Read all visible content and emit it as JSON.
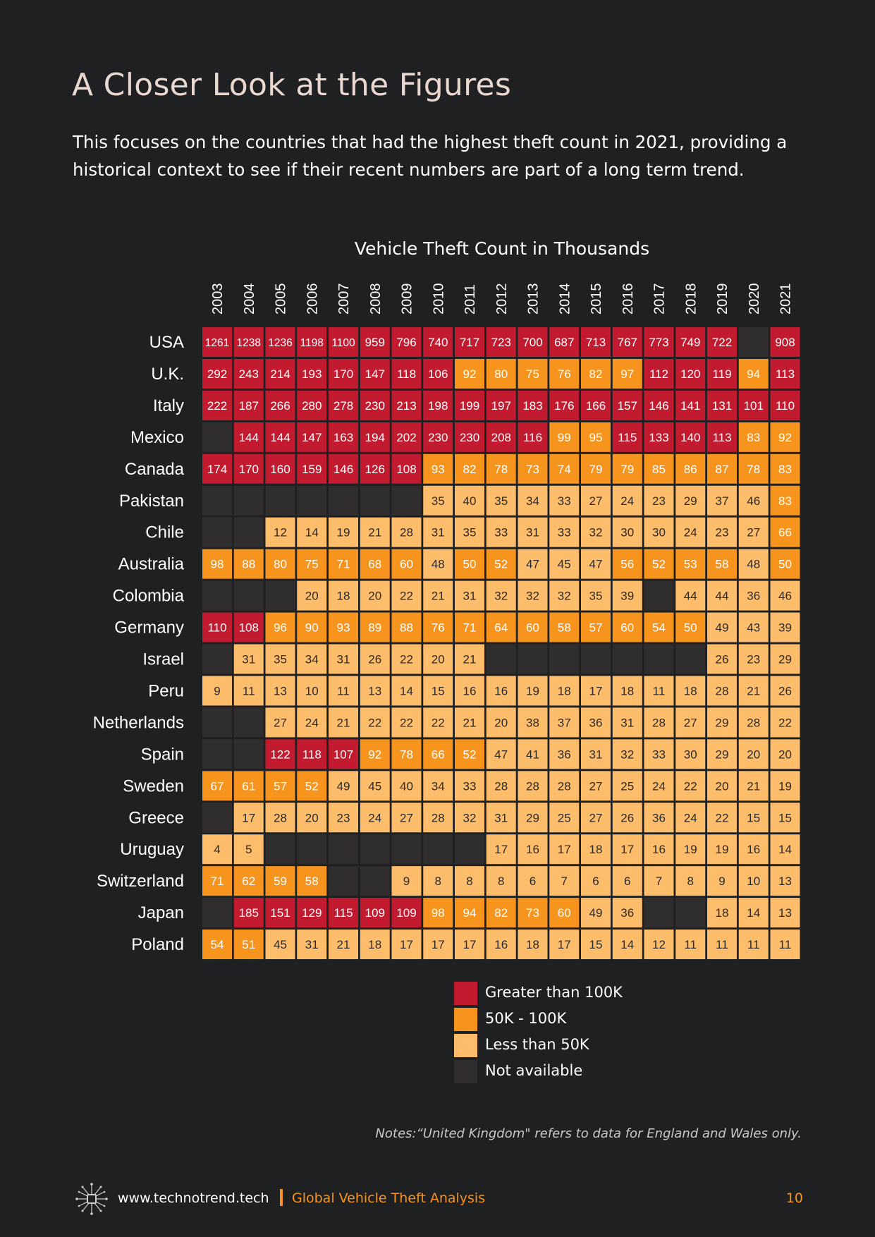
{
  "page": {
    "title": "A Closer Look at the Figures",
    "intro": "This focuses on the countries that had the highest theft count in 2021, providing a historical context to see if their recent numbers are part of a long term trend.",
    "note": "Notes:“United Kingdom\" refers to data for England and Wales only.",
    "footer": {
      "site": "www.technotrend.tech",
      "report": "Global Vehicle Theft Analysis",
      "page_number": "10",
      "logo_icon": "circuit-chip-logo"
    }
  },
  "colors": {
    "background": "#1e2022",
    "high": "#c21b30",
    "mid": "#f7941d",
    "low": "#fdbd6b",
    "na": "#302d2e"
  },
  "chart_data": {
    "type": "heatmap",
    "title": "Vehicle Theft Count in Thousands",
    "years": [
      "2003",
      "2004",
      "2005",
      "2006",
      "2007",
      "2008",
      "2009",
      "2010",
      "2011",
      "2012",
      "2013",
      "2014",
      "2015",
      "2016",
      "2017",
      "2018",
      "2019",
      "2020",
      "2021"
    ],
    "rows": [
      {
        "country": "USA",
        "values": [
          1261,
          1238,
          1236,
          1198,
          1100,
          959,
          796,
          740,
          717,
          723,
          700,
          687,
          713,
          767,
          773,
          749,
          722,
          null,
          908
        ]
      },
      {
        "country": "U.K.",
        "values": [
          292,
          243,
          214,
          193,
          170,
          147,
          118,
          106,
          92,
          80,
          75,
          76,
          82,
          97,
          112,
          120,
          119,
          94,
          113
        ]
      },
      {
        "country": "Italy",
        "values": [
          222,
          187,
          266,
          280,
          278,
          230,
          213,
          198,
          199,
          197,
          183,
          176,
          166,
          157,
          146,
          141,
          131,
          101,
          110
        ]
      },
      {
        "country": "Mexico",
        "values": [
          null,
          144,
          144,
          147,
          163,
          194,
          202,
          230,
          230,
          208,
          116,
          99,
          95,
          115,
          133,
          140,
          113,
          83,
          92
        ]
      },
      {
        "country": "Canada",
        "values": [
          174,
          170,
          160,
          159,
          146,
          126,
          108,
          93,
          82,
          78,
          73,
          74,
          79,
          79,
          85,
          86,
          87,
          78,
          83
        ]
      },
      {
        "country": "Pakistan",
        "values": [
          null,
          null,
          null,
          null,
          null,
          null,
          null,
          35,
          40,
          35,
          34,
          33,
          27,
          24,
          23,
          29,
          37,
          46,
          83
        ]
      },
      {
        "country": "Chile",
        "values": [
          null,
          null,
          12,
          14,
          19,
          21,
          28,
          31,
          35,
          33,
          31,
          33,
          32,
          30,
          30,
          24,
          23,
          27,
          66
        ]
      },
      {
        "country": "Australia",
        "values": [
          98,
          88,
          80,
          75,
          71,
          68,
          60,
          48,
          50,
          52,
          47,
          45,
          47,
          56,
          52,
          53,
          58,
          48,
          50
        ]
      },
      {
        "country": "Colombia",
        "values": [
          null,
          null,
          null,
          20,
          18,
          20,
          22,
          21,
          31,
          32,
          32,
          32,
          35,
          39,
          null,
          44,
          44,
          36,
          46
        ]
      },
      {
        "country": "Germany",
        "values": [
          110,
          108,
          96,
          90,
          93,
          89,
          88,
          76,
          71,
          64,
          60,
          58,
          57,
          60,
          54,
          50,
          49,
          43,
          39
        ]
      },
      {
        "country": "Israel",
        "values": [
          null,
          31,
          35,
          34,
          31,
          26,
          22,
          20,
          21,
          null,
          null,
          null,
          null,
          null,
          null,
          null,
          26,
          23,
          29
        ]
      },
      {
        "country": "Peru",
        "values": [
          9,
          11,
          13,
          10,
          11,
          13,
          14,
          15,
          16,
          16,
          19,
          18,
          17,
          18,
          11,
          18,
          28,
          21,
          26
        ]
      },
      {
        "country": "Netherlands",
        "values": [
          null,
          null,
          27,
          24,
          21,
          22,
          22,
          22,
          21,
          20,
          38,
          37,
          36,
          31,
          28,
          27,
          29,
          28,
          22
        ]
      },
      {
        "country": "Spain",
        "values": [
          null,
          null,
          122,
          118,
          107,
          92,
          78,
          66,
          52,
          47,
          41,
          36,
          31,
          32,
          33,
          30,
          29,
          20,
          20
        ]
      },
      {
        "country": "Sweden",
        "values": [
          67,
          61,
          57,
          52,
          49,
          45,
          40,
          34,
          33,
          28,
          28,
          28,
          27,
          25,
          24,
          22,
          20,
          21,
          19
        ]
      },
      {
        "country": "Greece",
        "values": [
          null,
          17,
          28,
          20,
          23,
          24,
          27,
          28,
          32,
          31,
          29,
          25,
          27,
          26,
          36,
          24,
          22,
          15,
          15
        ]
      },
      {
        "country": "Uruguay",
        "values": [
          4,
          5,
          null,
          null,
          null,
          null,
          null,
          null,
          null,
          17,
          16,
          17,
          18,
          17,
          16,
          19,
          19,
          16,
          14
        ]
      },
      {
        "country": "Switzerland",
        "values": [
          71,
          62,
          59,
          58,
          null,
          null,
          9,
          8,
          8,
          8,
          6,
          7,
          6,
          6,
          7,
          8,
          9,
          10,
          13
        ]
      },
      {
        "country": "Japan",
        "values": [
          null,
          185,
          151,
          129,
          115,
          109,
          109,
          98,
          94,
          82,
          73,
          60,
          49,
          36,
          null,
          null,
          18,
          14,
          13
        ]
      },
      {
        "country": "Poland",
        "values": [
          54,
          51,
          45,
          31,
          21,
          18,
          17,
          17,
          17,
          16,
          18,
          17,
          15,
          14,
          12,
          11,
          11,
          11,
          11
        ]
      }
    ],
    "legend": [
      {
        "key": "high",
        "label": "Greater than 100K"
      },
      {
        "key": "mid",
        "label": "50K - 100K"
      },
      {
        "key": "low",
        "label": "Less than 50K"
      },
      {
        "key": "na",
        "label": "Not available"
      }
    ]
  }
}
